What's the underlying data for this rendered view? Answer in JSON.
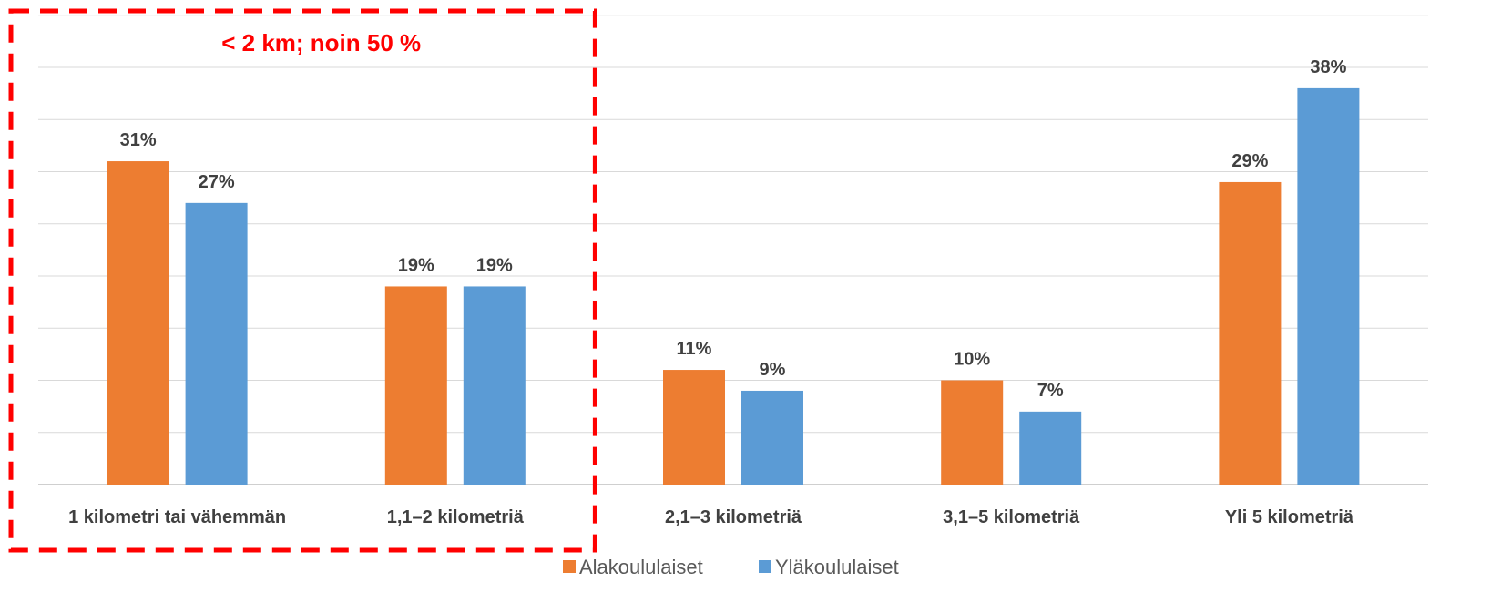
{
  "chart_data": {
    "type": "bar",
    "title": "",
    "xlabel": "",
    "ylabel": "",
    "categories": [
      "1 kilometri tai vähemmän",
      "1,1–2 kilometriä",
      "2,1–3 kilometriä",
      "3,1–5 kilometriä",
      "Yli 5 kilometriä"
    ],
    "series": [
      {
        "name": "Alakoululaiset",
        "values": [
          31,
          19,
          11,
          10,
          29
        ],
        "labels": [
          "31%",
          "19%",
          "11%",
          "10%",
          "29%"
        ],
        "color": "#ed7d31"
      },
      {
        "name": "Yläkoululaiset",
        "values": [
          27,
          19,
          9,
          7,
          38
        ],
        "labels": [
          "27%",
          "19%",
          "9%",
          "7%",
          "38%"
        ],
        "color": "#5b9bd5"
      }
    ],
    "ylim": [
      0,
      45
    ],
    "grid": true,
    "legend": "bottom-center",
    "annotation": {
      "text": "< 2 km; noin 50 %",
      "color": "#ff0000",
      "covers": [
        "1 kilometri tai vähemmän",
        "1,1–2 kilometriä"
      ]
    }
  }
}
